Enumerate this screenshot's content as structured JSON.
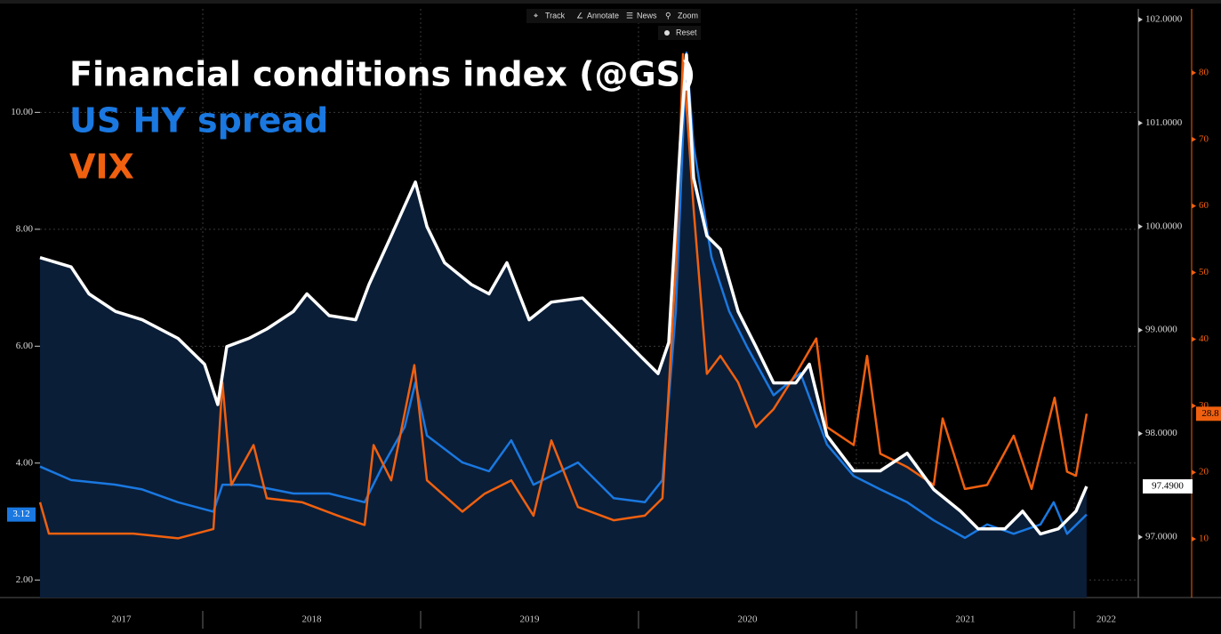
{
  "toolbar": {
    "items": [
      "Track",
      "Annotate",
      "News",
      "Zoom"
    ],
    "reset": "Reset"
  },
  "chart_data": {
    "type": "line",
    "xlim": [
      2017.253,
      2022.294
    ],
    "xticks": [
      2017,
      2018,
      2019,
      2020,
      2021,
      2022
    ],
    "ylim": [
      1.7,
      11.77
    ],
    "yticks": [
      {
        "value": 2,
        "label": "2.00"
      },
      {
        "value": 4,
        "label": "4.00"
      },
      {
        "value": 6,
        "label": "6.00"
      },
      {
        "value": 8,
        "label": "8.00"
      },
      {
        "value": 10,
        "label": "10.00"
      }
    ],
    "y2lim": [
      96.416,
      102.103
    ],
    "y2ticks": [
      {
        "value": 97,
        "label": "97.0000"
      },
      {
        "value": 98,
        "label": "98.0000"
      },
      {
        "value": 99,
        "label": "99.0000"
      },
      {
        "value": 100,
        "label": "100.0000"
      },
      {
        "value": 101,
        "label": "101.0000"
      },
      {
        "value": 102,
        "label": "102.0000"
      }
    ],
    "y3lim": [
      1.2,
      89.6
    ],
    "y3ticks": [
      10,
      20,
      30,
      40,
      50,
      60,
      70,
      80
    ],
    "grid": true,
    "series": [
      {
        "name": "Financial conditions index (@GS)",
        "color": "#ffffff",
        "area_color": "#0a1e38",
        "axis": "y2",
        "last_value": {
          "value": 97.49,
          "label": "97.4900"
        },
        "x": [
          2017.253,
          2017.396,
          2017.478,
          2017.6,
          2017.722,
          2017.886,
          2018.008,
          2018.069,
          2018.11,
          2018.212,
          2018.294,
          2018.416,
          2018.478,
          2018.58,
          2018.702,
          2018.763,
          2018.865,
          2018.976,
          2019.029,
          2019.11,
          2019.233,
          2019.314,
          2019.396,
          2019.498,
          2019.6,
          2019.743,
          2019.886,
          2020.008,
          2020.09,
          2020.139,
          2020.192,
          2020.22,
          2020.253,
          2020.314,
          2020.376,
          2020.457,
          2020.539,
          2020.62,
          2020.722,
          2020.784,
          2020.865,
          2020.988,
          2021.11,
          2021.233,
          2021.355,
          2021.478,
          2021.559,
          2021.682,
          2021.763,
          2021.845,
          2021.927,
          2022.008,
          2022.057
        ],
        "values": [
          99.7,
          99.61,
          99.35,
          99.18,
          99.1,
          98.92,
          98.67,
          98.28,
          98.84,
          98.92,
          99.01,
          99.18,
          99.35,
          99.14,
          99.1,
          99.44,
          99.91,
          100.43,
          100.0,
          99.65,
          99.44,
          99.35,
          99.65,
          99.1,
          99.27,
          99.31,
          99.01,
          98.75,
          98.58,
          98.88,
          100.81,
          101.66,
          100.47,
          99.91,
          99.78,
          99.18,
          98.84,
          98.49,
          98.49,
          98.67,
          97.98,
          97.64,
          97.64,
          97.81,
          97.46,
          97.25,
          97.08,
          97.08,
          97.25,
          97.03,
          97.08,
          97.25,
          97.49
        ]
      },
      {
        "name": "US HY spread",
        "color": "#1a78e0",
        "axis": "y",
        "last_value": 3.12,
        "x": [
          2017.253,
          2017.396,
          2017.6,
          2017.722,
          2017.886,
          2018.049,
          2018.09,
          2018.212,
          2018.416,
          2018.58,
          2018.743,
          2018.824,
          2018.927,
          2018.976,
          2019.029,
          2019.192,
          2019.314,
          2019.416,
          2019.518,
          2019.722,
          2019.886,
          2020.029,
          2020.11,
          2020.171,
          2020.22,
          2020.253,
          2020.335,
          2020.416,
          2020.498,
          2020.62,
          2020.743,
          2020.865,
          2020.988,
          2021.11,
          2021.233,
          2021.355,
          2021.498,
          2021.6,
          2021.722,
          2021.845,
          2021.906,
          2021.967,
          2022.057
        ],
        "values": [
          3.94,
          3.71,
          3.63,
          3.55,
          3.33,
          3.17,
          3.63,
          3.63,
          3.48,
          3.48,
          3.33,
          3.94,
          4.62,
          5.38,
          4.47,
          4.01,
          3.86,
          4.39,
          3.63,
          4.01,
          3.4,
          3.33,
          3.71,
          6.6,
          11.02,
          9.42,
          7.52,
          6.6,
          5.99,
          5.16,
          5.54,
          4.32,
          3.78,
          3.55,
          3.33,
          3.02,
          2.72,
          2.95,
          2.79,
          2.95,
          3.33,
          2.79,
          3.12
        ]
      },
      {
        "name": "VIX",
        "color": "#f0600f",
        "axis": "y3",
        "last_value": 28.8,
        "x": [
          2017.253,
          2017.294,
          2017.478,
          2017.682,
          2017.886,
          2018.049,
          2018.09,
          2018.131,
          2018.233,
          2018.294,
          2018.457,
          2018.62,
          2018.743,
          2018.784,
          2018.865,
          2018.971,
          2019.029,
          2019.192,
          2019.294,
          2019.416,
          2019.518,
          2019.6,
          2019.722,
          2019.886,
          2020.029,
          2020.11,
          2020.171,
          2020.204,
          2020.253,
          2020.314,
          2020.376,
          2020.457,
          2020.539,
          2020.62,
          2020.722,
          2020.816,
          2020.865,
          2020.988,
          2021.049,
          2021.11,
          2021.233,
          2021.355,
          2021.396,
          2021.498,
          2021.6,
          2021.722,
          2021.804,
          2021.91,
          2021.967,
          2022.008,
          2022.057
        ],
        "values": [
          15.5,
          10.8,
          10.8,
          10.8,
          10.1,
          11.5,
          33.5,
          18.1,
          24.1,
          16.1,
          15.5,
          13.5,
          12.1,
          24.1,
          18.8,
          36.1,
          18.8,
          14.1,
          16.8,
          18.8,
          13.5,
          24.8,
          14.8,
          12.8,
          13.5,
          16.1,
          50.8,
          82.8,
          59.5,
          34.8,
          37.5,
          33.5,
          26.8,
          29.5,
          34.8,
          40.1,
          26.8,
          24.1,
          37.5,
          22.8,
          20.8,
          18.1,
          28.1,
          17.5,
          18.1,
          25.5,
          17.5,
          31.2,
          20.1,
          19.5,
          28.8
        ]
      }
    ]
  }
}
